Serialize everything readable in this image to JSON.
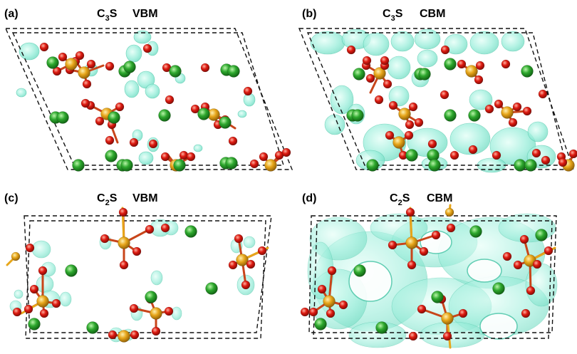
{
  "figure": {
    "panels": [
      {
        "letter": "(a)",
        "compound": "C",
        "subscript": "3",
        "compound_tail": "S",
        "band": "VBM"
      },
      {
        "letter": "(b)",
        "compound": "C",
        "subscript": "3",
        "compound_tail": "S",
        "band": "CBM"
      },
      {
        "letter": "(c)",
        "compound": "C",
        "subscript": "2",
        "compound_tail": "S",
        "band": "VBM"
      },
      {
        "letter": "(d)",
        "compound": "C",
        "subscript": "2",
        "compound_tail": "S",
        "band": "CBM"
      }
    ]
  },
  "colors": {
    "ca_atom": "#2ea82e",
    "o_atom": "#dd1a10",
    "si_atom": "#e7a61a",
    "charge_isosurface": "#8fe8d4",
    "cell_border": "#111111"
  }
}
